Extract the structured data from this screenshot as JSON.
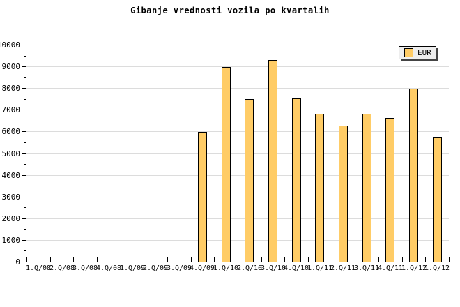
{
  "title": "Gibanje vrednosti vozila po kvartalih",
  "legend": {
    "label": "EUR",
    "swatch_color": "#ffcc66",
    "position": "top-right"
  },
  "colors": {
    "bar_fill": "#ffcc66",
    "bar_border": "#000000",
    "grid": "#dcdcdc",
    "axis": "#000000",
    "legend_background": "#eeeeee",
    "background": "#ffffff"
  },
  "chart_data": {
    "type": "bar",
    "title": "Gibanje vrednosti vozila po kvartalih",
    "xlabel": "",
    "ylabel": "",
    "ylim": [
      0,
      10000
    ],
    "ytick_step": 1000,
    "ytick_minor_step": 500,
    "grid": "horizontal",
    "legend_position": "top-right",
    "categories": [
      "1.Q/08",
      "2.Q/08",
      "3.Q/08",
      "4.Q/08",
      "1.Q/09",
      "2.Q/09",
      "3.Q/09",
      "4.Q/09",
      "1.Q/10",
      "2.Q/10",
      "3.Q/10",
      "4.Q/10",
      "1.Q/11",
      "2.Q/11",
      "3.Q/11",
      "4.Q/11",
      "1.Q/12",
      "1.Q/12"
    ],
    "series": [
      {
        "name": "EUR",
        "values": [
          null,
          null,
          null,
          null,
          null,
          null,
          null,
          5950,
          8950,
          7450,
          9250,
          7500,
          6800,
          6250,
          6800,
          6600,
          7950,
          5700
        ]
      }
    ]
  }
}
